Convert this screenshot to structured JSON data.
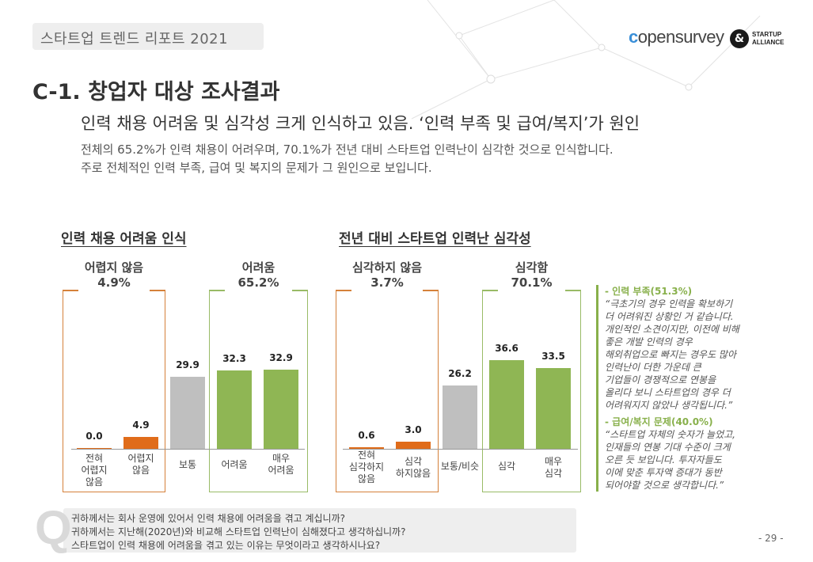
{
  "header": {
    "report_title": "스타트업 트렌드 리포트 2021"
  },
  "logos": {
    "opensurvey": "opensurvey",
    "startup_alliance_line1": "STARTUP",
    "startup_alliance_line2": "ALLIANCE",
    "startup_alliance_mark": "&"
  },
  "page": {
    "title": "C-1. 창업자 대상 조사결과",
    "headline": "인력 채용 어려움 및 심각성 크게 인식하고 있음. ‘인력 부족 및 급여/복지’가 원인",
    "desc_line1": "전체의 65.2%가 인력 채용이 어려우며, 70.1%가 전년 대비 스타트업 인력난이 심각한 것으로 인식합니다.",
    "desc_line2": "주로 전체적인 인력 부족, 급여 및 복지의 문제가 그 원인으로 보입니다."
  },
  "chart_data": [
    {
      "type": "bar",
      "title": "인력 채용 어려움 인식",
      "categories": [
        "전혀 어렵지 않음",
        "어렵지 않음",
        "보통",
        "어려움",
        "매우 어려움"
      ],
      "values": [
        0.0,
        4.9,
        29.9,
        32.3,
        32.9
      ],
      "value_labels": [
        "0.0",
        "4.9",
        "29.9",
        "32.3",
        "32.9"
      ],
      "colors": [
        "#e06c1a",
        "#e06c1a",
        "#bfbfbf",
        "#8fb654",
        "#8fb654"
      ],
      "groups": [
        {
          "label": "어렵지 않음",
          "value": "4.9%"
        },
        {
          "label": "어려움",
          "value": "65.2%"
        }
      ],
      "ylim": [
        0,
        40
      ]
    },
    {
      "type": "bar",
      "title": "전년 대비 스타트업 인력난 심각성",
      "categories": [
        "전혀 심각하지 않음",
        "심각하지않음",
        "보통/비슷",
        "심각",
        "매우 심각"
      ],
      "values": [
        0.6,
        3.0,
        26.2,
        36.6,
        33.5
      ],
      "value_labels": [
        "0.6",
        "3.0",
        "26.2",
        "36.6",
        "33.5"
      ],
      "colors": [
        "#e06c1a",
        "#e06c1a",
        "#bfbfbf",
        "#8fb654",
        "#8fb654"
      ],
      "groups": [
        {
          "label": "심각하지 않음",
          "value": "3.7%"
        },
        {
          "label": "심각함",
          "value": "70.1%"
        }
      ],
      "ylim": [
        0,
        40
      ]
    }
  ],
  "chart_labels": {
    "c1": {
      "title": "인력 채용 어려움 인식",
      "g1_label": "어렵지 않음",
      "g1_value": "4.9%",
      "g2_label": "어려움",
      "g2_value": "65.2%",
      "cat1_a": "전혀",
      "cat1_b": "어렵지",
      "cat1_c": "않음",
      "cat2_a": "어렵지",
      "cat2_b": "않음",
      "cat3": "보통",
      "cat4": "어려움",
      "cat5_a": "매우",
      "cat5_b": "어려움"
    },
    "c2": {
      "title": "전년 대비 스타트업 인력난 심각성",
      "g1_label": "심각하지 않음",
      "g1_value": "3.7%",
      "g2_label": "심각함",
      "g2_value": "70.1%",
      "cat1_a": "전혀",
      "cat1_b": "심각하지",
      "cat1_c": "않음",
      "cat2_a": "심각",
      "cat2_b": "하지않음",
      "cat3": "보통/비슷",
      "cat4": "심각",
      "cat5_a": "매우",
      "cat5_b": "심각"
    }
  },
  "sidebar": {
    "label1": "- 인력 부족(51.3%)",
    "quote1": [
      "“극초기의 경우 인력을 확보하기",
      "더 어려워진 상황인 거 같습니다.",
      "개인적인 소견이지만, 이전에 비해",
      "좋은 개발 인력의 경우",
      "해외취업으로 빠지는 경우도 많아",
      "인력난이 더한 가운데 큰",
      "기업들이 경쟁적으로 연봉을",
      "올리다 보니 스타트업의 경우 더",
      "어려워지지 않았나 생각됩니다.”"
    ],
    "label2": "- 급여/복지 문제(40.0%)",
    "quote2": [
      "“스타트업 자체의 숫자가 늘었고,",
      "인재들의 연봉 기대 수준이 크게",
      "오른 듯 보입니다. 투자자들도",
      "이에 맞춘 투자액 증대가 동반",
      "되어야할 것으로 생각합니다.”"
    ]
  },
  "questions": {
    "q1": "귀하께서는 회사 운영에 있어서 인력 채용에 어려움을 겪고 계십니까?",
    "q2": "귀하께서는 지난해(2020년)와 비교해 스타트업 인력난이 심해졌다고 생각하십니까?",
    "q3": "스타트업이 인력 채용에 어려움을 겪고 있는 이유는 무엇이라고 생각하시나요?",
    "mark": "Q"
  },
  "page_number": "- 29 -"
}
